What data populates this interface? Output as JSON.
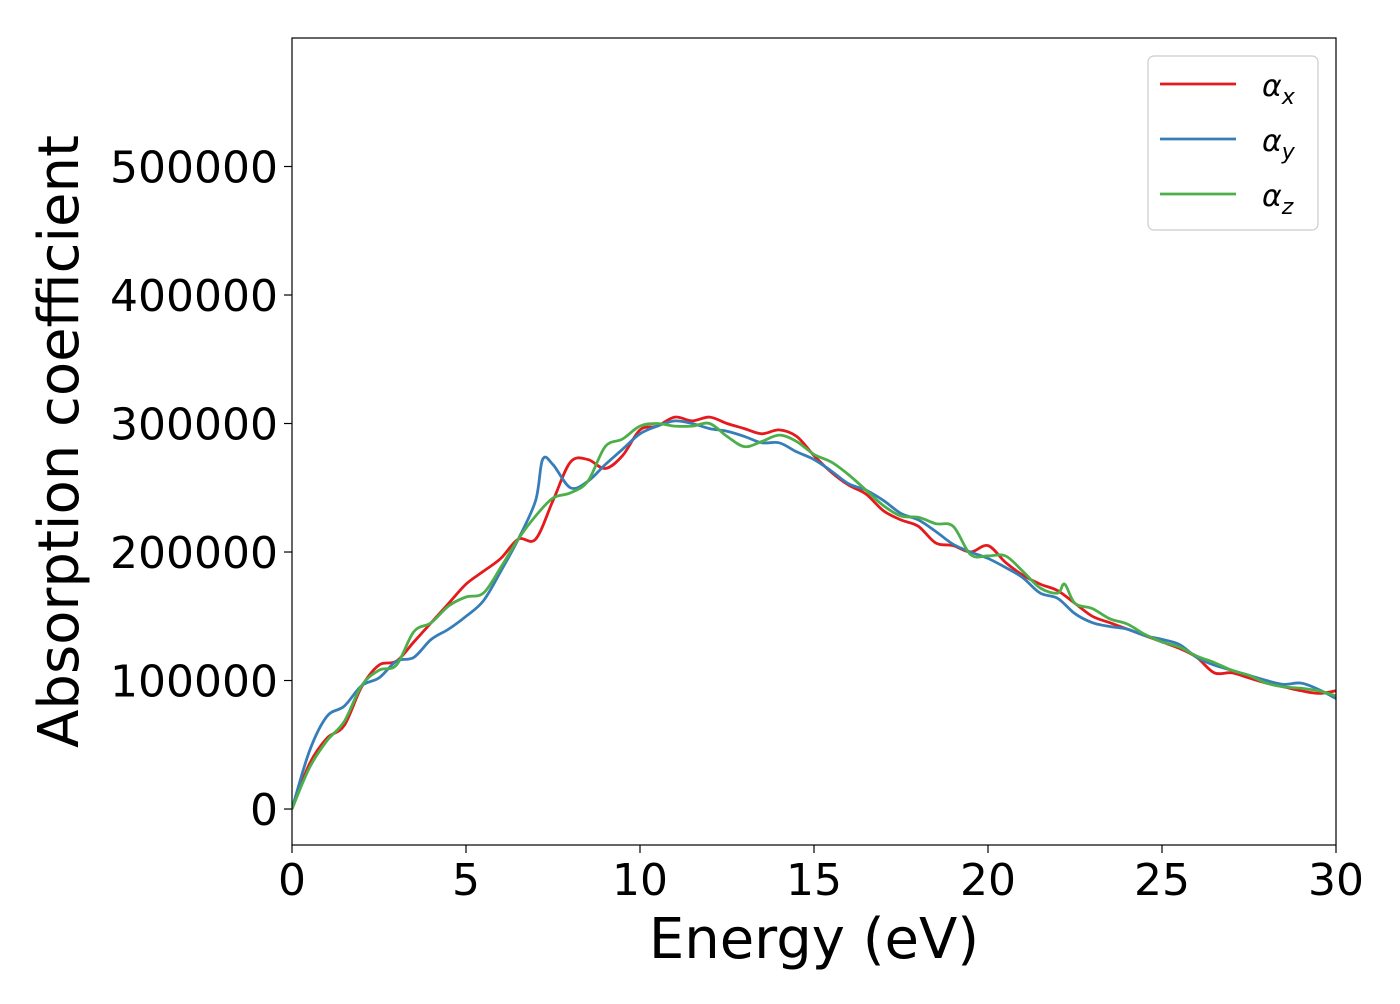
{
  "chart_data": {
    "type": "line",
    "xlabel": "Energy (eV)",
    "ylabel": "Absorption coefficient",
    "xlim": [
      0,
      30
    ],
    "ylim": [
      -28000,
      600000
    ],
    "x_ticks": [
      "0",
      "5",
      "10",
      "15",
      "20",
      "25",
      "30"
    ],
    "y_ticks": [
      "0",
      "100000",
      "200000",
      "300000",
      "400000",
      "500000"
    ],
    "grid": false,
    "legend_position": "top-right",
    "series": [
      {
        "name": "αx",
        "label_main": "α",
        "label_sub": "x",
        "color": "#e41a1c",
        "x": [
          0,
          0.5,
          1,
          1.5,
          2,
          2.5,
          3,
          3.5,
          4,
          4.5,
          5,
          5.5,
          6,
          6.5,
          7,
          7.5,
          8,
          8.5,
          9,
          9.5,
          10,
          10.5,
          11,
          11.5,
          12,
          12.5,
          13,
          13.5,
          14,
          14.5,
          15,
          15.5,
          16,
          16.5,
          17,
          17.5,
          18,
          18.5,
          19,
          19.5,
          20,
          20.5,
          21,
          21.5,
          22,
          22.5,
          23,
          23.5,
          24,
          24.5,
          25,
          25.5,
          26,
          26.5,
          27,
          27.5,
          28,
          28.5,
          29,
          29.5,
          30
        ],
        "y": [
          0,
          35000,
          55000,
          65000,
          95000,
          112000,
          115000,
          130000,
          145000,
          160000,
          175000,
          185000,
          195000,
          210000,
          210000,
          240000,
          270000,
          272000,
          265000,
          275000,
          295000,
          298000,
          305000,
          302000,
          305000,
          300000,
          296000,
          292000,
          295000,
          290000,
          275000,
          262000,
          252000,
          245000,
          232000,
          225000,
          220000,
          207000,
          205000,
          200000,
          205000,
          192000,
          182000,
          175000,
          170000,
          160000,
          150000,
          145000,
          140000,
          135000,
          130000,
          125000,
          118000,
          106000,
          106000,
          102000,
          98000,
          95000,
          92000,
          90000,
          92000
        ]
      },
      {
        "name": "αy",
        "label_main": "α",
        "label_sub": "y",
        "color": "#377eb8",
        "x": [
          0,
          0.5,
          1,
          1.5,
          2,
          2.5,
          3,
          3.5,
          4,
          4.5,
          5,
          5.5,
          6,
          6.5,
          7,
          7.2,
          7.5,
          8,
          8.5,
          9,
          9.5,
          10,
          10.5,
          11,
          11.5,
          12,
          12.5,
          13,
          13.5,
          14,
          14.5,
          15,
          15.5,
          16,
          16.5,
          17,
          17.5,
          18,
          18.5,
          19,
          19.5,
          20,
          20.5,
          21,
          21.5,
          22,
          22.5,
          23,
          23.5,
          24,
          24.5,
          25,
          25.5,
          26,
          26.5,
          27,
          27.5,
          28,
          28.5,
          29,
          29.5,
          30
        ],
        "y": [
          0,
          45000,
          72000,
          80000,
          96000,
          102000,
          115000,
          118000,
          132000,
          140000,
          150000,
          162000,
          185000,
          210000,
          240000,
          272000,
          268000,
          250000,
          255000,
          268000,
          280000,
          292000,
          298000,
          302000,
          300000,
          296000,
          294000,
          290000,
          285000,
          285000,
          278000,
          272000,
          263000,
          253000,
          248000,
          240000,
          230000,
          225000,
          216000,
          206000,
          200000,
          195000,
          188000,
          180000,
          168000,
          164000,
          152000,
          145000,
          142000,
          140000,
          135000,
          132000,
          128000,
          118000,
          112000,
          108000,
          104000,
          100000,
          97000,
          98000,
          93000,
          86000
        ]
      },
      {
        "name": "αz",
        "label_main": "α",
        "label_sub": "z",
        "color": "#4daf4a",
        "x": [
          0,
          0.5,
          1,
          1.5,
          2,
          2.5,
          3,
          3.5,
          4,
          4.5,
          5,
          5.5,
          6,
          6.5,
          7,
          7.5,
          8,
          8.5,
          9,
          9.5,
          10,
          10.5,
          11,
          11.5,
          12,
          12.5,
          13,
          13.5,
          14,
          14.5,
          15,
          15.5,
          16,
          16.5,
          17,
          17.5,
          18,
          18.5,
          19,
          19.5,
          20,
          20.5,
          21,
          21.5,
          22,
          22.2,
          22.5,
          23,
          23.5,
          24,
          24.5,
          25,
          25.5,
          26,
          26.5,
          27,
          27.5,
          28,
          28.5,
          29,
          29.5,
          30
        ],
        "y": [
          0,
          32000,
          53000,
          68000,
          96000,
          108000,
          112000,
          138000,
          145000,
          158000,
          165000,
          168000,
          188000,
          210000,
          228000,
          242000,
          246000,
          255000,
          282000,
          288000,
          298000,
          300000,
          298000,
          298000,
          300000,
          290000,
          282000,
          286000,
          291000,
          286000,
          276000,
          270000,
          260000,
          248000,
          236000,
          228000,
          227000,
          222000,
          220000,
          198000,
          197000,
          197000,
          185000,
          172000,
          168000,
          175000,
          160000,
          156000,
          148000,
          144000,
          136000,
          130000,
          126000,
          119000,
          114000,
          108000,
          104000,
          98000,
          95000,
          94000,
          92000,
          88000
        ]
      }
    ]
  }
}
